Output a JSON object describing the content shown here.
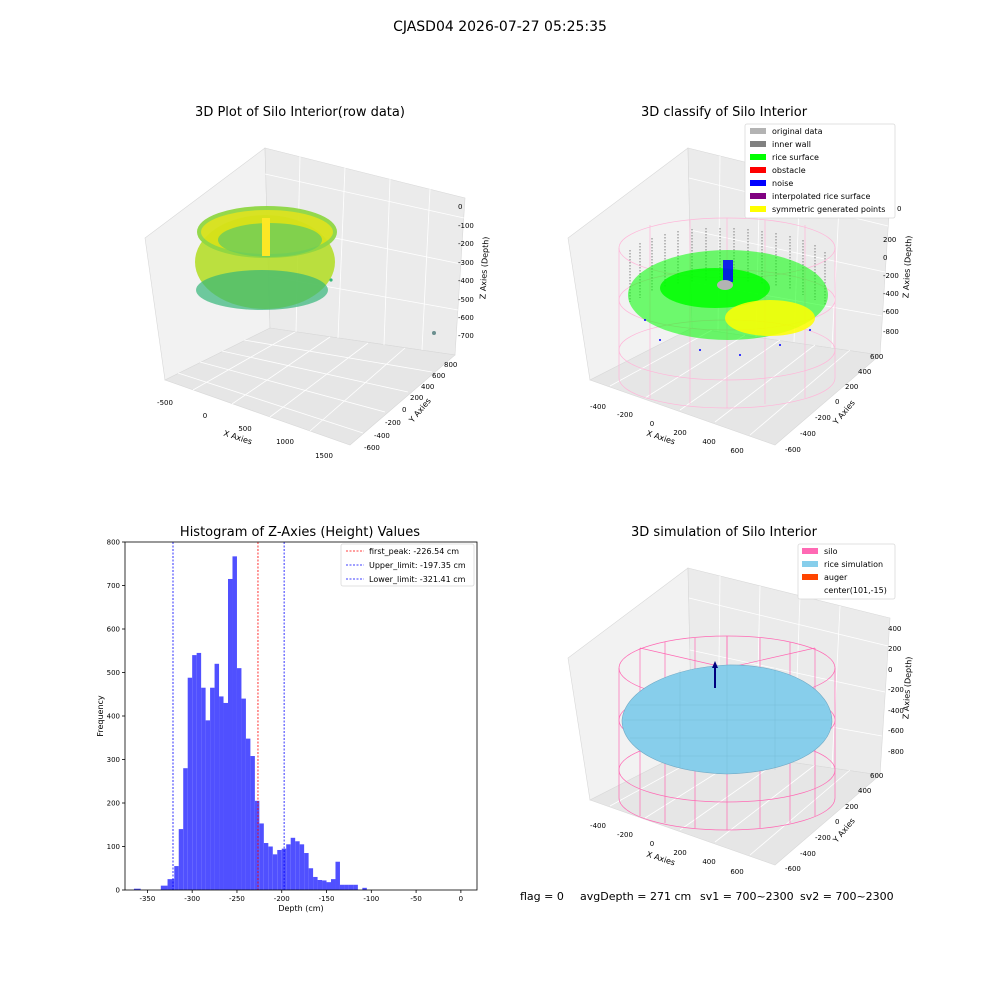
{
  "figure": {
    "suptitle": "CJASD04 2026-07-27 05:25:35",
    "footer": {
      "flag": "flag = 0",
      "avg_depth": "avgDepth = 271 cm",
      "sv1": "sv1 = 700~2300",
      "sv2": "sv2 = 700~2300"
    }
  },
  "chart_data": [
    {
      "type": "scatter",
      "projection": "3d",
      "title": "3D Plot of Silo Interior(row data)",
      "xlabel": "X Axies",
      "ylabel": "Y Axies",
      "zlabel": "Z Axies (Depth)",
      "x_ticks": [
        "-500",
        "0",
        "500",
        "1000",
        "1500"
      ],
      "y_ticks": [
        "-600",
        "-400",
        "-200",
        "0",
        "200",
        "400",
        "600",
        "800"
      ],
      "z_ticks": [
        "0",
        "-100",
        "-200",
        "-300",
        "-400",
        "-500",
        "-600",
        "-700"
      ],
      "colormap": "viridis"
    },
    {
      "type": "scatter",
      "projection": "3d",
      "title": "3D classify of Silo Interior",
      "xlabel": "X Axies",
      "ylabel": "Y Axies",
      "zlabel": "Z Axies (Depth)",
      "x_ticks": [
        "-400",
        "-200",
        "0",
        "200",
        "400",
        "600"
      ],
      "y_ticks": [
        "-600",
        "-400",
        "-200",
        "0",
        "200",
        "400",
        "600"
      ],
      "z_ticks": [
        "200",
        "0",
        "-200",
        "-400",
        "-600",
        "-800"
      ],
      "z_ticks_top_partial": "0",
      "legend": [
        {
          "label": "original data",
          "color": "#b3b3b3"
        },
        {
          "label": "inner wall",
          "color": "#808080"
        },
        {
          "label": "rice surface",
          "color": "#00ff00"
        },
        {
          "label": "obstacle",
          "color": "#ff0000"
        },
        {
          "label": "noise",
          "color": "#0000ff"
        },
        {
          "label": "interpolated rice surface",
          "color": "#800080"
        },
        {
          "label": "symmetric generated points",
          "color": "#ffff00"
        }
      ],
      "legend_loc": "upper right"
    },
    {
      "type": "bar",
      "title": "Histogram of Z-Axies (Height) Values",
      "xlabel": "Depth (cm)",
      "ylabel": "Frequency",
      "xlim": [
        -375,
        18
      ],
      "ylim": [
        0,
        800
      ],
      "x_ticks": [
        -350,
        -300,
        -250,
        -200,
        -150,
        -100,
        -50,
        0
      ],
      "y_ticks": [
        0,
        100,
        200,
        300,
        400,
        500,
        600,
        700,
        800
      ],
      "bar_color": "#5050ff",
      "bins": [
        {
          "x0": -365.0,
          "x1": -357.5,
          "value": 3
        },
        {
          "x0": -357.5,
          "x1": -350.0,
          "value": 0
        },
        {
          "x0": -350.0,
          "x1": -342.5,
          "value": 0
        },
        {
          "x0": -342.5,
          "x1": -335.0,
          "value": 0
        },
        {
          "x0": -335.0,
          "x1": -327.5,
          "value": 10
        },
        {
          "x0": -327.5,
          "x1": -320.0,
          "value": 25
        },
        {
          "x0": -320.0,
          "x1": -315.0,
          "value": 55
        },
        {
          "x0": -315.0,
          "x1": -310.0,
          "value": 140
        },
        {
          "x0": -310.0,
          "x1": -305.0,
          "value": 280
        },
        {
          "x0": -305.0,
          "x1": -300.0,
          "value": 488
        },
        {
          "x0": -300.0,
          "x1": -295.0,
          "value": 540
        },
        {
          "x0": -295.0,
          "x1": -290.0,
          "value": 545
        },
        {
          "x0": -290.0,
          "x1": -285.0,
          "value": 465
        },
        {
          "x0": -285.0,
          "x1": -280.0,
          "value": 390
        },
        {
          "x0": -280.0,
          "x1": -275.0,
          "value": 465
        },
        {
          "x0": -275.0,
          "x1": -270.0,
          "value": 520
        },
        {
          "x0": -270.0,
          "x1": -265.0,
          "value": 445
        },
        {
          "x0": -265.0,
          "x1": -260.0,
          "value": 430
        },
        {
          "x0": -260.0,
          "x1": -255.0,
          "value": 715
        },
        {
          "x0": -255.0,
          "x1": -250.0,
          "value": 767
        },
        {
          "x0": -250.0,
          "x1": -245.0,
          "value": 510
        },
        {
          "x0": -245.0,
          "x1": -240.0,
          "value": 440
        },
        {
          "x0": -240.0,
          "x1": -235.0,
          "value": 348
        },
        {
          "x0": -235.0,
          "x1": -230.0,
          "value": 308
        },
        {
          "x0": -230.0,
          "x1": -225.0,
          "value": 205
        },
        {
          "x0": -225.0,
          "x1": -220.0,
          "value": 153
        },
        {
          "x0": -220.0,
          "x1": -215.0,
          "value": 108
        },
        {
          "x0": -215.0,
          "x1": -210.0,
          "value": 100
        },
        {
          "x0": -210.0,
          "x1": -205.0,
          "value": 82
        },
        {
          "x0": -205.0,
          "x1": -200.0,
          "value": 92
        },
        {
          "x0": -200.0,
          "x1": -195.0,
          "value": 95
        },
        {
          "x0": -195.0,
          "x1": -190.0,
          "value": 105
        },
        {
          "x0": -190.0,
          "x1": -185.0,
          "value": 120
        },
        {
          "x0": -185.0,
          "x1": -180.0,
          "value": 112
        },
        {
          "x0": -180.0,
          "x1": -175.0,
          "value": 105
        },
        {
          "x0": -175.0,
          "x1": -170.0,
          "value": 85
        },
        {
          "x0": -170.0,
          "x1": -165.0,
          "value": 50
        },
        {
          "x0": -165.0,
          "x1": -160.0,
          "value": 30
        },
        {
          "x0": -160.0,
          "x1": -155.0,
          "value": 23
        },
        {
          "x0": -155.0,
          "x1": -150.0,
          "value": 22
        },
        {
          "x0": -150.0,
          "x1": -145.0,
          "value": 18
        },
        {
          "x0": -145.0,
          "x1": -140.0,
          "value": 25
        },
        {
          "x0": -140.0,
          "x1": -135.0,
          "value": 65
        },
        {
          "x0": -135.0,
          "x1": -130.0,
          "value": 12
        },
        {
          "x0": -130.0,
          "x1": -125.0,
          "value": 12
        },
        {
          "x0": -125.0,
          "x1": -120.0,
          "value": 12
        },
        {
          "x0": -120.0,
          "x1": -115.0,
          "value": 12
        },
        {
          "x0": -115.0,
          "x1": -110.0,
          "value": 0
        },
        {
          "x0": -110.0,
          "x1": -105.0,
          "value": 5
        }
      ],
      "vlines": [
        {
          "x": -226.54,
          "label": "first_peak: -226.54 cm",
          "color": "#ff0000"
        },
        {
          "x": -197.35,
          "label": "Upper_limit: -197.35 cm",
          "color": "#0000ff"
        },
        {
          "x": -321.41,
          "label": "Lower_limit: -321.41 cm",
          "color": "#0000ff"
        }
      ],
      "legend_loc": "upper right"
    },
    {
      "type": "surface",
      "projection": "3d",
      "title": "3D simulation of Silo Interior",
      "xlabel": "X Axies",
      "ylabel": "Y Axies",
      "zlabel": "Z Axies (Depth)",
      "x_ticks": [
        "-400",
        "-200",
        "0",
        "200",
        "400",
        "600"
      ],
      "y_ticks": [
        "-600",
        "-400",
        "-200",
        "0",
        "200",
        "400",
        "600"
      ],
      "z_ticks": [
        "400",
        "200",
        "0",
        "-200",
        "-400",
        "-600",
        "-800"
      ],
      "legend": [
        {
          "label": "silo",
          "color": "#ff69b4"
        },
        {
          "label": "rice simulation",
          "color": "#87ceeb"
        },
        {
          "label": "auger",
          "color": "#ff4500"
        },
        {
          "label": "center(101,-15)",
          "color": ""
        }
      ],
      "legend_loc": "upper right"
    }
  ]
}
